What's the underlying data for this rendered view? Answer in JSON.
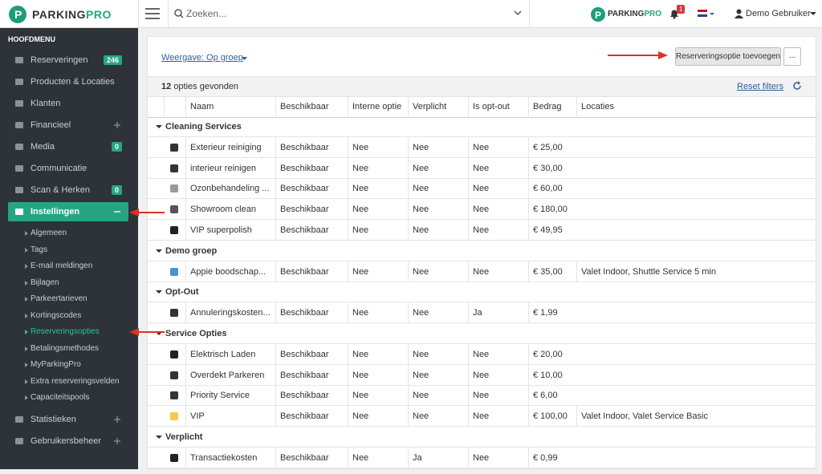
{
  "topbar": {
    "logo": {
      "part1": "PARKING",
      "part2": "PRO"
    },
    "search_placeholder": "Zoeken...",
    "notification_count": 1,
    "user": "Demo Gebruiker"
  },
  "sidebar": {
    "heading": "HOOFDMENU",
    "items": [
      {
        "label": "Reserveringen",
        "badge": 246
      },
      {
        "label": "Producten & Locaties"
      },
      {
        "label": "Klanten"
      },
      {
        "label": "Financieel"
      },
      {
        "label": "Media",
        "badge": 0
      },
      {
        "label": "Communicatie"
      },
      {
        "label": "Scan & Herken",
        "badge": 0
      },
      {
        "label": "Instellingen"
      }
    ],
    "submenu": [
      "Algemeen",
      "Tags",
      "E-mail meldingen",
      "Bijlagen",
      "Parkeertarieven",
      "Kortingscodes",
      "Reserveringsopties",
      "Betalingsmethodes",
      "MyParkingPro",
      "Extra reserveringsvelden",
      "Capaciteitspools"
    ],
    "bottom_items": [
      {
        "label": "Statistieken"
      },
      {
        "label": "Gebruikersbeheer"
      }
    ]
  },
  "toolbar": {
    "view": "Weergave: Op groep",
    "add_button": "Reserveringsoptie toevoegen",
    "more_button": "...",
    "count": 12,
    "count_text": "opties gevonden",
    "reset": "Reset filters"
  },
  "table": {
    "columns": [
      "Naam",
      "Beschikbaar",
      "Interne optie",
      "Verplicht",
      "Is opt-out",
      "Bedrag",
      "Locaties"
    ],
    "groups": [
      {
        "name": "Cleaning Services",
        "rows": [
          [
            "Exterieur reiniging",
            "Beschikbaar",
            "Nee",
            "Nee",
            "Nee",
            "€ 25,00"
          ],
          [
            "interieur reinigen",
            "Beschikbaar",
            "Nee",
            "Nee",
            "Nee",
            "€ 30,00"
          ],
          [
            "Ozonbehandeling ...",
            "Beschikbaar",
            "Nee",
            "Nee",
            "Nee",
            "€ 60,00"
          ],
          [
            "Showroom clean",
            "Beschikbaar",
            "Nee",
            "Nee",
            "Nee",
            "€ 180,00"
          ],
          [
            "VIP superpolish",
            "Beschikbaar",
            "Nee",
            "Nee",
            "Nee",
            "€ 49,95"
          ]
        ]
      },
      {
        "name": "Demo groep",
        "rows": [
          [
            "Appie boodschap...",
            "Beschikbaar",
            "Nee",
            "Nee",
            "Nee",
            "€ 35,00",
            "Valet Indoor, Shuttle Service 5 min"
          ]
        ]
      },
      {
        "name": "Opt-Out",
        "rows": [
          [
            "Annuleringskosten...",
            "Beschikbaar",
            "Nee",
            "Nee",
            "Ja",
            "€ 1,99"
          ]
        ]
      },
      {
        "name": "Service Opties",
        "rows": [
          [
            "Elektrisch Laden",
            "Beschikbaar",
            "Nee",
            "Nee",
            "Nee",
            "€ 20,00"
          ],
          [
            "Overdekt Parkeren",
            "Beschikbaar",
            "Nee",
            "Nee",
            "Nee",
            "€ 10,00"
          ],
          [
            "Priority Service",
            "Beschikbaar",
            "Nee",
            "Nee",
            "Nee",
            "€ 6,00"
          ],
          [
            "VIP",
            "Beschikbaar",
            "Nee",
            "Nee",
            "Nee",
            "€ 100,00",
            "Valet Indoor, Valet Service Basic"
          ]
        ]
      },
      {
        "name": "Verplicht",
        "rows": [
          [
            "Transactiekosten",
            "Beschikbaar",
            "Nee",
            "Ja",
            "Nee",
            "€ 0,99"
          ]
        ]
      }
    ]
  }
}
